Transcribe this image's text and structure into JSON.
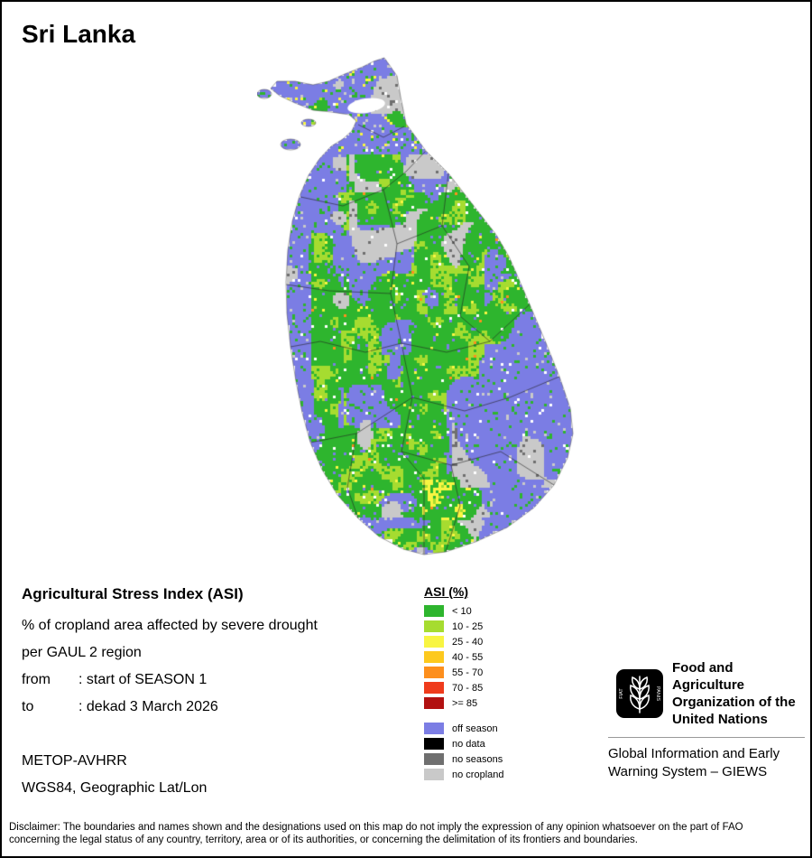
{
  "header": {
    "title": "Sri Lanka"
  },
  "info": {
    "heading": "Agricultural Stress Index (ASI)",
    "description_line1": "% of cropland area affected by severe drought",
    "description_line2": "per GAUL 2 region",
    "from_label": "from",
    "from_value": ": start of SEASON 1",
    "to_label": "to",
    "to_value": ": dekad 3 March 2026",
    "sensor": "METOP-AVHRR",
    "projection": "WGS84, Geographic Lat/Lon"
  },
  "legend": {
    "title": "ASI (%)",
    "classes": [
      {
        "label": "< 10",
        "color": "#2eb52e"
      },
      {
        "label": "10 - 25",
        "color": "#a6dc30"
      },
      {
        "label": "25 - 40",
        "color": "#f8f542"
      },
      {
        "label": "40 - 55",
        "color": "#fdc91e"
      },
      {
        "label": "55 - 70",
        "color": "#fd8f1d"
      },
      {
        "label": "70 - 85",
        "color": "#ef3b1c"
      },
      {
        "label": ">= 85",
        "color": "#b21111"
      }
    ],
    "extras": [
      {
        "label": "off season",
        "color": "#7b7de4"
      },
      {
        "label": "no data",
        "color": "#000000"
      },
      {
        "label": "no seasons",
        "color": "#6f6f6f"
      },
      {
        "label": "no cropland",
        "color": "#c9c9c9"
      }
    ]
  },
  "org": {
    "fao_name_lines": [
      "Food and Agriculture",
      "Organization of the",
      "United Nations"
    ],
    "motto_left": "FIAT",
    "motto_right": "PANIS",
    "giews_lines": [
      "Global Information and Early",
      "Warning System – GIEWS"
    ]
  },
  "disclaimer": "Disclaimer: The boundaries and names shown and the designations used on this map do not imply the expression of any opinion whatsoever on the part of FAO concerning the legal status of any country, territory, area or of its authorities, or concerning the delimitation of its frontiers and boundaries."
}
